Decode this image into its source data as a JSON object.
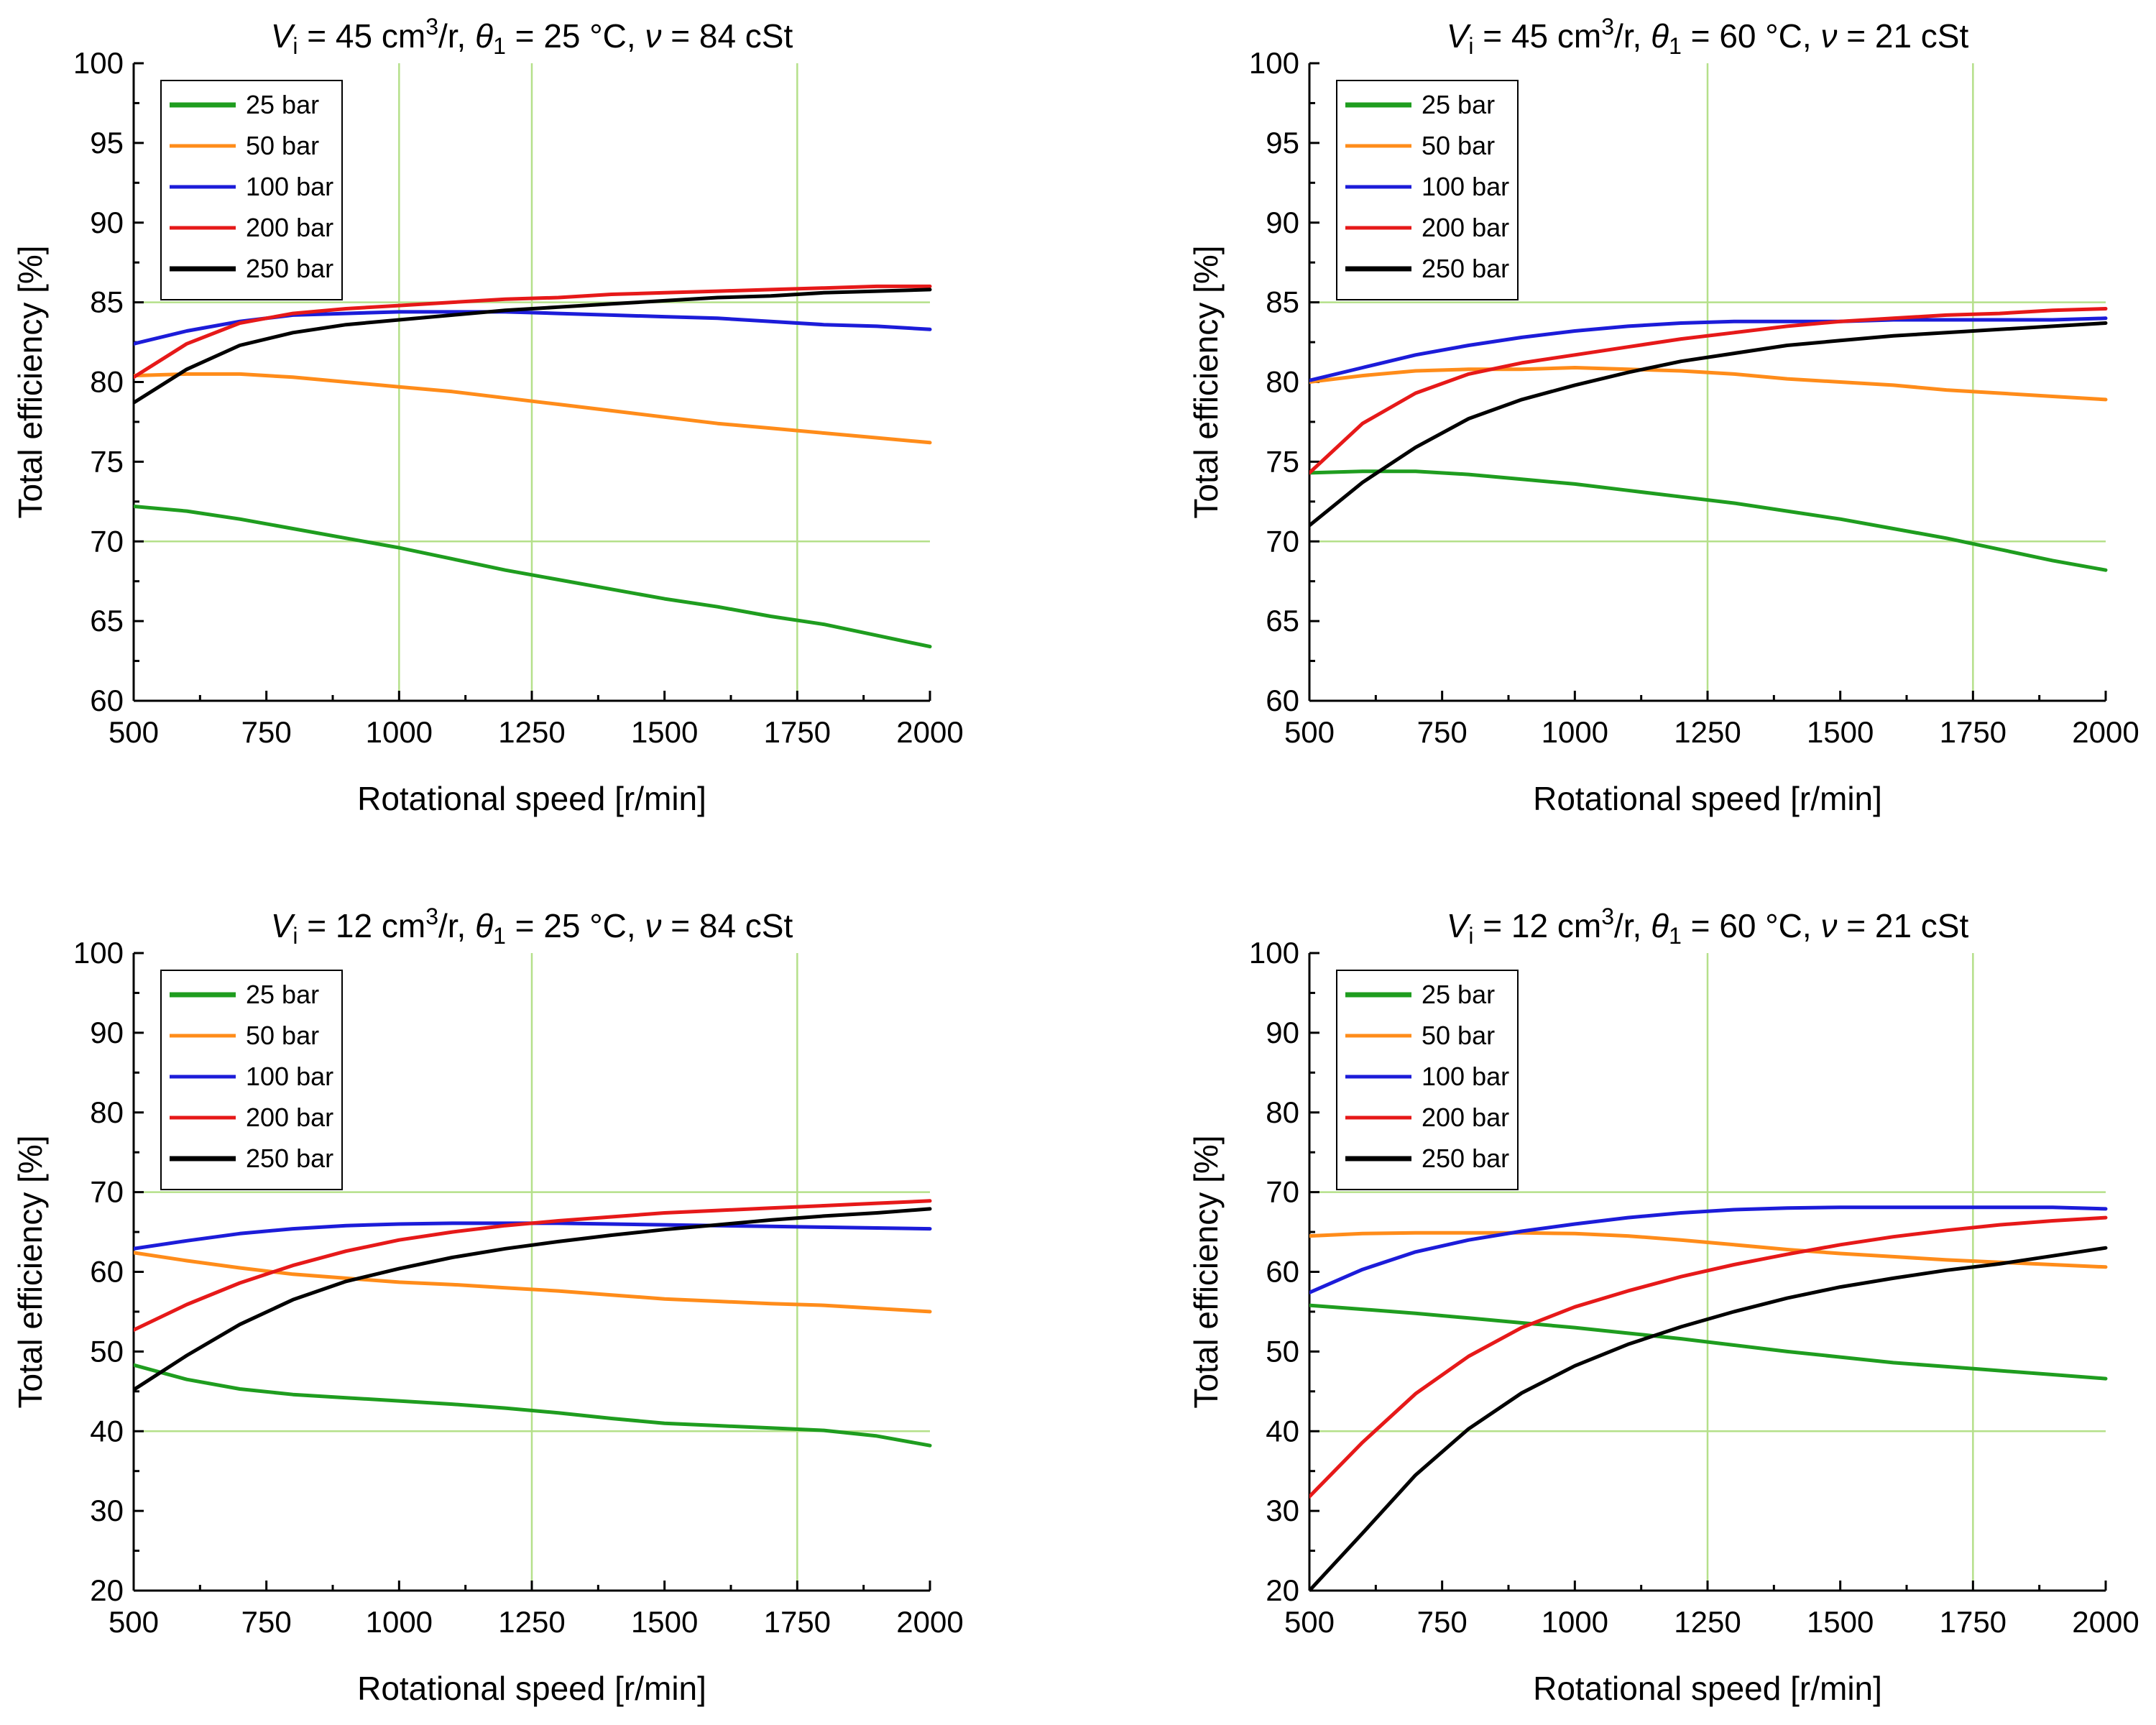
{
  "chart_data": [
    {
      "type": "line",
      "title_parts": {
        "V": "V",
        "V_sub": "i",
        "v_text": " = 45 cm",
        "v_sup": "3",
        "v_unit": "/r, ",
        "theta": "θ",
        "theta_sub": "1",
        "theta_text": " = 25 °C, ",
        "nu": "ν",
        "nu_text": " = 84 cSt"
      },
      "xlabel": "Rotational speed [r/min]",
      "ylabel": "Total efficiency [%]",
      "xlim": [
        500,
        2000
      ],
      "ylim": [
        60,
        100
      ],
      "xticks": [
        500,
        750,
        1000,
        1250,
        1500,
        1750,
        2000
      ],
      "yticks": [
        60,
        65,
        70,
        75,
        80,
        85,
        90,
        95,
        100
      ],
      "grid_x": [
        1000,
        1250,
        1750
      ],
      "grid_y": [
        70,
        85
      ],
      "legend_position": "top-left",
      "series": [
        {
          "name": "25 bar",
          "color": "#1f9d1f",
          "x": [
            500,
            600,
            700,
            800,
            900,
            1000,
            1100,
            1200,
            1300,
            1400,
            1500,
            1600,
            1700,
            1800,
            1900,
            2000
          ],
          "values": [
            72.2,
            71.9,
            71.4,
            70.8,
            70.2,
            69.6,
            68.9,
            68.2,
            67.6,
            67.0,
            66.4,
            65.9,
            65.3,
            64.8,
            64.1,
            63.4
          ]
        },
        {
          "name": "50 bar",
          "color": "#ff8c1a",
          "x": [
            500,
            600,
            700,
            800,
            900,
            1000,
            1100,
            1200,
            1300,
            1400,
            1500,
            1600,
            1700,
            1800,
            1900,
            2000
          ],
          "values": [
            80.4,
            80.5,
            80.5,
            80.3,
            80.0,
            79.7,
            79.4,
            79.0,
            78.6,
            78.2,
            77.8,
            77.4,
            77.1,
            76.8,
            76.5,
            76.2
          ]
        },
        {
          "name": "100 bar",
          "color": "#1c1cd9",
          "x": [
            500,
            600,
            700,
            800,
            900,
            1000,
            1100,
            1200,
            1300,
            1400,
            1500,
            1600,
            1700,
            1800,
            1900,
            2000
          ],
          "values": [
            82.4,
            83.2,
            83.8,
            84.2,
            84.3,
            84.4,
            84.4,
            84.4,
            84.3,
            84.2,
            84.1,
            84.0,
            83.8,
            83.6,
            83.5,
            83.3
          ]
        },
        {
          "name": "200 bar",
          "color": "#e61919",
          "x": [
            500,
            600,
            700,
            800,
            900,
            1000,
            1100,
            1200,
            1300,
            1400,
            1500,
            1600,
            1700,
            1800,
            1900,
            2000
          ],
          "values": [
            80.3,
            82.4,
            83.7,
            84.3,
            84.6,
            84.8,
            85.0,
            85.2,
            85.3,
            85.5,
            85.6,
            85.7,
            85.8,
            85.9,
            86.0,
            86.0
          ]
        },
        {
          "name": "250 bar",
          "color": "#000000",
          "x": [
            500,
            600,
            700,
            800,
            900,
            1000,
            1100,
            1200,
            1300,
            1400,
            1500,
            1600,
            1700,
            1800,
            1900,
            2000
          ],
          "values": [
            78.7,
            80.8,
            82.3,
            83.1,
            83.6,
            83.9,
            84.2,
            84.5,
            84.7,
            84.9,
            85.1,
            85.3,
            85.4,
            85.6,
            85.7,
            85.8
          ]
        }
      ]
    },
    {
      "type": "line",
      "title_parts": {
        "V": "V",
        "V_sub": "i",
        "v_text": " = 45 cm",
        "v_sup": "3",
        "v_unit": "/r, ",
        "theta": "θ",
        "theta_sub": "1",
        "theta_text": " = 60 °C, ",
        "nu": "ν",
        "nu_text": " = 21 cSt"
      },
      "xlabel": "Rotational speed [r/min]",
      "ylabel": "Total efficiency [%]",
      "xlim": [
        500,
        2000
      ],
      "ylim": [
        60,
        100
      ],
      "xticks": [
        500,
        750,
        1000,
        1250,
        1500,
        1750,
        2000
      ],
      "yticks": [
        60,
        65,
        70,
        75,
        80,
        85,
        90,
        95,
        100
      ],
      "grid_x": [
        1250,
        1750
      ],
      "grid_y": [
        70,
        85
      ],
      "legend_position": "top-left",
      "series": [
        {
          "name": "25 bar",
          "color": "#1f9d1f",
          "x": [
            500,
            600,
            700,
            800,
            900,
            1000,
            1100,
            1200,
            1300,
            1400,
            1500,
            1600,
            1700,
            1800,
            1900,
            2000
          ],
          "values": [
            74.3,
            74.4,
            74.4,
            74.2,
            73.9,
            73.6,
            73.2,
            72.8,
            72.4,
            71.9,
            71.4,
            70.8,
            70.2,
            69.5,
            68.8,
            68.2
          ]
        },
        {
          "name": "50 bar",
          "color": "#ff8c1a",
          "x": [
            500,
            600,
            700,
            800,
            900,
            1000,
            1100,
            1200,
            1300,
            1400,
            1500,
            1600,
            1700,
            1800,
            1900,
            2000
          ],
          "values": [
            80.0,
            80.4,
            80.7,
            80.8,
            80.8,
            80.9,
            80.8,
            80.7,
            80.5,
            80.2,
            80.0,
            79.8,
            79.5,
            79.3,
            79.1,
            78.9
          ]
        },
        {
          "name": "100 bar",
          "color": "#1c1cd9",
          "x": [
            500,
            600,
            700,
            800,
            900,
            1000,
            1100,
            1200,
            1300,
            1400,
            1500,
            1600,
            1700,
            1800,
            1900,
            2000
          ],
          "values": [
            80.1,
            80.9,
            81.7,
            82.3,
            82.8,
            83.2,
            83.5,
            83.7,
            83.8,
            83.8,
            83.8,
            83.9,
            83.9,
            83.9,
            83.9,
            84.0
          ]
        },
        {
          "name": "200 bar",
          "color": "#e61919",
          "x": [
            500,
            600,
            700,
            800,
            900,
            1000,
            1100,
            1200,
            1300,
            1400,
            1500,
            1600,
            1700,
            1800,
            1900,
            2000
          ],
          "values": [
            74.3,
            77.4,
            79.3,
            80.5,
            81.2,
            81.7,
            82.2,
            82.7,
            83.1,
            83.5,
            83.8,
            84.0,
            84.2,
            84.3,
            84.5,
            84.6
          ]
        },
        {
          "name": "250 bar",
          "color": "#000000",
          "x": [
            500,
            600,
            700,
            800,
            900,
            1000,
            1100,
            1200,
            1300,
            1400,
            1500,
            1600,
            1700,
            1800,
            1900,
            2000
          ],
          "values": [
            71.0,
            73.7,
            75.9,
            77.7,
            78.9,
            79.8,
            80.6,
            81.3,
            81.8,
            82.3,
            82.6,
            82.9,
            83.1,
            83.3,
            83.5,
            83.7
          ]
        }
      ]
    },
    {
      "type": "line",
      "title_parts": {
        "V": "V",
        "V_sub": "i",
        "v_text": " = 12 cm",
        "v_sup": "3",
        "v_unit": "/r, ",
        "theta": "θ",
        "theta_sub": "1",
        "theta_text": " = 25 °C, ",
        "nu": "ν",
        "nu_text": " = 84 cSt"
      },
      "xlabel": "Rotational speed [r/min]",
      "ylabel": "Total efficiency [%]",
      "xlim": [
        500,
        2000
      ],
      "ylim": [
        20,
        100
      ],
      "xticks": [
        500,
        750,
        1000,
        1250,
        1500,
        1750,
        2000
      ],
      "yticks": [
        20,
        30,
        40,
        50,
        60,
        70,
        80,
        90,
        100
      ],
      "grid_x": [
        1250,
        1750
      ],
      "grid_y": [
        40,
        70
      ],
      "legend_position": "top-left",
      "series": [
        {
          "name": "25 bar",
          "color": "#1f9d1f",
          "x": [
            500,
            600,
            700,
            800,
            900,
            1000,
            1100,
            1200,
            1300,
            1400,
            1500,
            1600,
            1700,
            1800,
            1900,
            2000
          ],
          "values": [
            48.3,
            46.5,
            45.3,
            44.6,
            44.2,
            43.8,
            43.4,
            42.9,
            42.3,
            41.6,
            41.0,
            40.7,
            40.4,
            40.1,
            39.4,
            38.2
          ]
        },
        {
          "name": "50 bar",
          "color": "#ff8c1a",
          "x": [
            500,
            600,
            700,
            800,
            900,
            1000,
            1100,
            1200,
            1300,
            1400,
            1500,
            1600,
            1700,
            1800,
            1900,
            2000
          ],
          "values": [
            62.4,
            61.4,
            60.5,
            59.7,
            59.2,
            58.7,
            58.4,
            58.0,
            57.6,
            57.1,
            56.6,
            56.3,
            56.0,
            55.8,
            55.4,
            55.0
          ]
        },
        {
          "name": "100 bar",
          "color": "#1c1cd9",
          "x": [
            500,
            600,
            700,
            800,
            900,
            1000,
            1100,
            1200,
            1300,
            1400,
            1500,
            1600,
            1700,
            1800,
            1900,
            2000
          ],
          "values": [
            62.9,
            63.9,
            64.8,
            65.4,
            65.8,
            66.0,
            66.1,
            66.1,
            66.1,
            66.0,
            65.9,
            65.8,
            65.7,
            65.6,
            65.5,
            65.4
          ]
        },
        {
          "name": "200 bar",
          "color": "#e61919",
          "x": [
            500,
            600,
            700,
            800,
            900,
            1000,
            1100,
            1200,
            1300,
            1400,
            1500,
            1600,
            1700,
            1800,
            1900,
            2000
          ],
          "values": [
            52.7,
            55.9,
            58.6,
            60.8,
            62.6,
            64.0,
            65.0,
            65.8,
            66.4,
            66.9,
            67.4,
            67.7,
            68.0,
            68.3,
            68.6,
            68.9
          ]
        },
        {
          "name": "250 bar",
          "color": "#000000",
          "x": [
            500,
            600,
            700,
            800,
            900,
            1000,
            1100,
            1200,
            1300,
            1400,
            1500,
            1600,
            1700,
            1800,
            1900,
            2000
          ],
          "values": [
            45.2,
            49.5,
            53.4,
            56.5,
            58.8,
            60.4,
            61.8,
            62.9,
            63.8,
            64.6,
            65.3,
            65.9,
            66.5,
            67.0,
            67.4,
            67.9
          ]
        }
      ]
    },
    {
      "type": "line",
      "title_parts": {
        "V": "V",
        "V_sub": "i",
        "v_text": " = 12 cm",
        "v_sup": "3",
        "v_unit": "/r, ",
        "theta": "θ",
        "theta_sub": "1",
        "theta_text": " = 60 °C, ",
        "nu": "ν",
        "nu_text": " = 21 cSt"
      },
      "xlabel": "Rotational speed [r/min]",
      "ylabel": "Total efficiency [%]",
      "xlim": [
        500,
        2000
      ],
      "ylim": [
        20,
        100
      ],
      "xticks": [
        500,
        750,
        1000,
        1250,
        1500,
        1750,
        2000
      ],
      "yticks": [
        20,
        30,
        40,
        50,
        60,
        70,
        80,
        90,
        100
      ],
      "grid_x": [
        1250,
        1750
      ],
      "grid_y": [
        40,
        70
      ],
      "legend_position": "top-left",
      "series": [
        {
          "name": "25 bar",
          "color": "#1f9d1f",
          "x": [
            500,
            600,
            700,
            800,
            900,
            1000,
            1100,
            1200,
            1300,
            1400,
            1500,
            1600,
            1700,
            1800,
            1900,
            2000
          ],
          "values": [
            55.8,
            55.3,
            54.8,
            54.2,
            53.6,
            53.0,
            52.3,
            51.6,
            50.8,
            50.0,
            49.3,
            48.6,
            48.1,
            47.6,
            47.1,
            46.6
          ]
        },
        {
          "name": "50 bar",
          "color": "#ff8c1a",
          "x": [
            500,
            600,
            700,
            800,
            900,
            1000,
            1100,
            1200,
            1300,
            1400,
            1500,
            1600,
            1700,
            1800,
            1900,
            2000
          ],
          "values": [
            64.5,
            64.8,
            64.9,
            64.9,
            64.9,
            64.8,
            64.5,
            64.0,
            63.4,
            62.8,
            62.3,
            61.9,
            61.5,
            61.2,
            60.9,
            60.6
          ]
        },
        {
          "name": "100 bar",
          "color": "#1c1cd9",
          "x": [
            500,
            600,
            700,
            800,
            900,
            1000,
            1100,
            1200,
            1300,
            1400,
            1500,
            1600,
            1700,
            1800,
            1900,
            2000
          ],
          "values": [
            57.4,
            60.3,
            62.5,
            64.0,
            65.1,
            66.0,
            66.8,
            67.4,
            67.8,
            68.0,
            68.1,
            68.1,
            68.1,
            68.1,
            68.1,
            67.9
          ]
        },
        {
          "name": "200 bar",
          "color": "#e61919",
          "x": [
            500,
            600,
            700,
            800,
            900,
            1000,
            1100,
            1200,
            1300,
            1400,
            1500,
            1600,
            1700,
            1800,
            1900,
            2000
          ],
          "values": [
            31.8,
            38.6,
            44.7,
            49.4,
            53.0,
            55.6,
            57.6,
            59.4,
            60.9,
            62.2,
            63.4,
            64.4,
            65.2,
            65.9,
            66.4,
            66.8
          ]
        },
        {
          "name": "250 bar",
          "color": "#000000",
          "x": [
            500,
            600,
            700,
            800,
            900,
            1000,
            1100,
            1200,
            1300,
            1400,
            1500,
            1600,
            1700,
            1800,
            1900,
            2000
          ],
          "values": [
            19.0,
            27.2,
            34.5,
            40.3,
            44.8,
            48.2,
            50.9,
            53.1,
            55.0,
            56.7,
            58.1,
            59.2,
            60.2,
            61.0,
            62.0,
            63.0
          ]
        }
      ]
    }
  ]
}
